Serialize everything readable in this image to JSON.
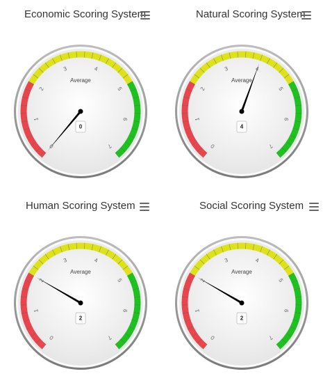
{
  "colors": {
    "red": "#e8454c",
    "yellow": "#dde21a",
    "green": "#1ec21e",
    "needle": "#000000"
  },
  "icons": {
    "menu": "hamburger-menu-icon"
  },
  "chart_data": [
    {
      "type": "gauge",
      "title": "Economic Scoring System",
      "pane_label": "Average",
      "value": 0,
      "value_label": "0",
      "min": 0,
      "max": 7,
      "ticks": [
        "0",
        "1",
        "2",
        "3",
        "4",
        "5",
        "6",
        "7"
      ],
      "bands": [
        {
          "from": 0,
          "to": 2,
          "color": "red"
        },
        {
          "from": 2,
          "to": 5,
          "color": "yellow"
        },
        {
          "from": 5,
          "to": 7,
          "color": "green"
        }
      ]
    },
    {
      "type": "gauge",
      "title": "Natural Scoring System",
      "pane_label": "Average",
      "value": 4,
      "value_label": "4",
      "min": 0,
      "max": 7,
      "ticks": [
        "0",
        "1",
        "2",
        "3",
        "4",
        "5",
        "6",
        "7"
      ],
      "bands": [
        {
          "from": 0,
          "to": 2,
          "color": "red"
        },
        {
          "from": 2,
          "to": 5,
          "color": "yellow"
        },
        {
          "from": 5,
          "to": 7,
          "color": "green"
        }
      ]
    },
    {
      "type": "gauge",
      "title": "Human Scoring System",
      "pane_label": "Average",
      "value": 2,
      "value_label": "2",
      "min": 0,
      "max": 7,
      "ticks": [
        "0",
        "1",
        "2",
        "3",
        "4",
        "5",
        "6",
        "7"
      ],
      "bands": [
        {
          "from": 0,
          "to": 2,
          "color": "red"
        },
        {
          "from": 2,
          "to": 5,
          "color": "yellow"
        },
        {
          "from": 5,
          "to": 7,
          "color": "green"
        }
      ]
    },
    {
      "type": "gauge",
      "title": "Social Scoring System",
      "pane_label": "Average",
      "value": 2,
      "value_label": "2",
      "min": 0,
      "max": 7,
      "ticks": [
        "0",
        "1",
        "2",
        "3",
        "4",
        "5",
        "6",
        "7"
      ],
      "bands": [
        {
          "from": 0,
          "to": 2,
          "color": "red"
        },
        {
          "from": 2,
          "to": 5,
          "color": "yellow"
        },
        {
          "from": 5,
          "to": 7,
          "color": "green"
        }
      ]
    }
  ]
}
